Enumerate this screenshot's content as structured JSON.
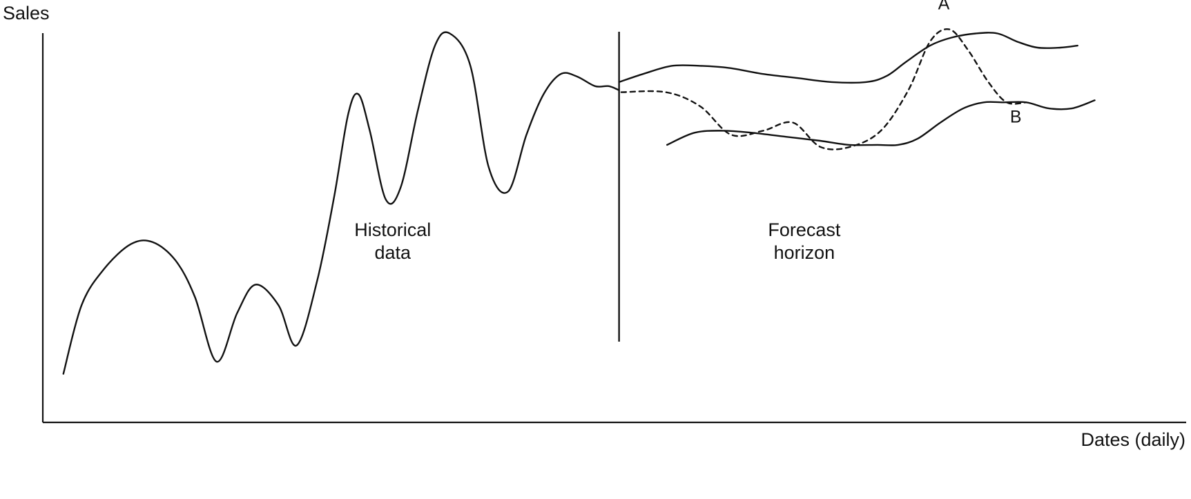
{
  "chart_data": {
    "type": "line",
    "title": "",
    "xlabel": "Dates (daily)",
    "ylabel": "Sales",
    "xlim": [
      0,
      100
    ],
    "ylim": [
      0,
      100
    ],
    "grid": false,
    "ticks_shown": false,
    "colors": {
      "ink": "#111111",
      "background": "#ffffff"
    },
    "divider_x": 50.4,
    "regions": [
      {
        "line1": "Historical",
        "line2": "data",
        "x": 30.6,
        "y": 46
      },
      {
        "line1": "Forecast",
        "line2": "horizon",
        "x": 66.6,
        "y": 46
      }
    ],
    "series": [
      {
        "style": "solid",
        "x": [
          1.8,
          3.4,
          5.4,
          7.7,
          9.6,
          11.6,
          13.3,
          15.2,
          17.0,
          18.6,
          20.6,
          22.2,
          24.0,
          25.5,
          26.7,
          27.6,
          28.6,
          30.0,
          31.3,
          32.8,
          34.3,
          35.6,
          37.4,
          39.0,
          40.7,
          42.3,
          43.8,
          45.3,
          46.7,
          48.3,
          49.5,
          50.4
        ],
        "y": [
          12,
          29,
          38,
          44,
          44.5,
          40,
          31,
          15,
          27,
          34,
          29,
          19,
          35,
          56,
          76,
          81,
          72,
          55,
          58,
          77,
          93,
          96,
          88,
          63,
          57,
          71,
          81,
          86,
          85.4,
          83,
          83,
          82
        ]
      },
      {
        "name": "A",
        "style": "dashed",
        "x": [
          50.6,
          54.5,
          57.5,
          60.2,
          63.0,
          65.6,
          68.0,
          70.6,
          73.3,
          75.7,
          77.6,
          79.3,
          80.9,
          82.7,
          84.3,
          86.0
        ],
        "y": [
          81.5,
          81.5,
          78,
          71,
          72,
          74,
          68,
          68,
          72,
          82,
          94,
          97,
          92,
          84,
          79,
          79
        ]
      },
      {
        "style": "solid",
        "x": [
          50.4,
          52.5,
          55.0,
          57.5,
          60.0,
          63.0,
          66.0,
          69.0,
          72.0,
          73.8,
          75.5,
          77.6,
          79.5,
          81.6,
          83.5,
          85.2,
          87.0,
          89.0,
          90.5
        ],
        "y": [
          84,
          86,
          88,
          88,
          87.5,
          86,
          85,
          84,
          84,
          85.5,
          89,
          93,
          95,
          96,
          96,
          94,
          92.5,
          92.5,
          93
        ]
      },
      {
        "name": "B",
        "style": "solid",
        "x": [
          54.6,
          57.0,
          59.5,
          62.0,
          65.0,
          68.0,
          70.5,
          73.0,
          74.8,
          76.5,
          78.5,
          80.5,
          82.3,
          84.0,
          86.0,
          88.0,
          90.0,
          92.0
        ],
        "y": [
          68.5,
          71.5,
          72,
          71.5,
          70.5,
          69.5,
          68.5,
          68.5,
          68.5,
          70,
          74,
          77.5,
          79,
          79,
          79,
          77.5,
          77.5,
          79.5
        ]
      }
    ],
    "annotations": [
      {
        "text": "A",
        "x": 78.8,
        "y": 102
      },
      {
        "text": "B",
        "x": 85.1,
        "y": 74
      }
    ]
  }
}
